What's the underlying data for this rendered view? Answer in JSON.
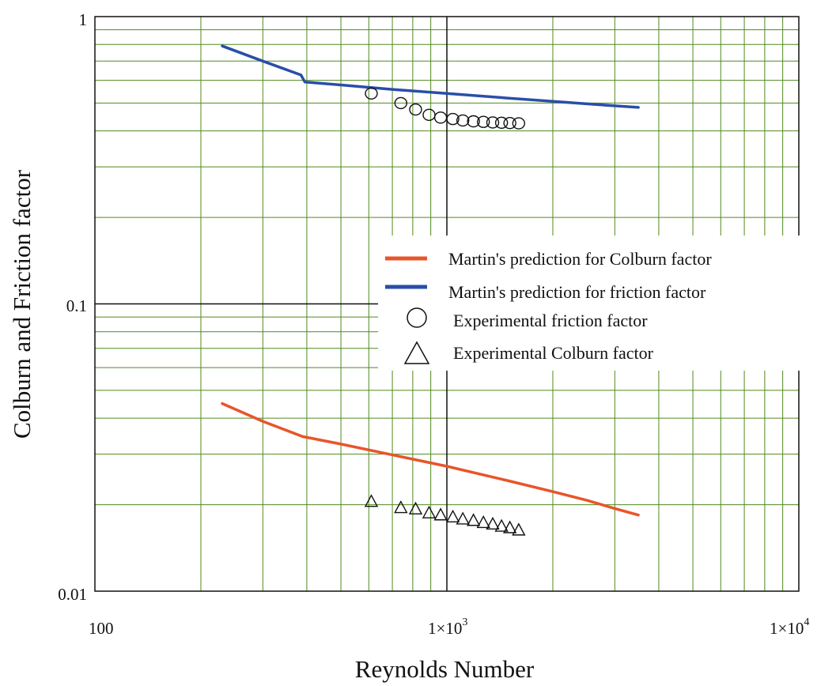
{
  "chart_data": {
    "type": "line",
    "xscale": "log",
    "yscale": "log",
    "xlim": [
      100,
      10000
    ],
    "ylim": [
      0.01,
      1
    ],
    "grid": true,
    "grid_color": "#4f8a1e",
    "legend_position": "center-right",
    "xlabel": "Reynolds Number",
    "ylabel": "Colburn and Friction factor",
    "x_tick_labels": [
      {
        "value": 100,
        "base": "100",
        "exp": ""
      },
      {
        "value": 1000,
        "base": "1×10",
        "exp": "3"
      },
      {
        "value": 10000,
        "base": "1×10",
        "exp": "4"
      }
    ],
    "y_tick_labels": [
      {
        "value": 1,
        "label": "1"
      },
      {
        "value": 0.1,
        "label": "0.1"
      },
      {
        "value": 0.01,
        "label": "0.01"
      }
    ],
    "series": [
      {
        "name": "Martin's prediction for Colburn factor",
        "kind": "line",
        "color": "#e8552a",
        "x": [
          230,
          300,
          390,
          400,
          500,
          700,
          1000,
          1500,
          2000,
          2500,
          3000,
          3500
        ],
        "y": [
          0.045,
          0.039,
          0.0345,
          0.0343,
          0.0325,
          0.0298,
          0.0272,
          0.0242,
          0.0222,
          0.0207,
          0.0194,
          0.0184
        ]
      },
      {
        "name": "Martin's prediction for friction factor",
        "kind": "line",
        "color": "#2a4ea8",
        "x": [
          230,
          300,
          385,
          395,
          500,
          700,
          1000,
          1500,
          2000,
          2500,
          3000,
          3500
        ],
        "y": [
          0.79,
          0.7,
          0.626,
          0.592,
          0.578,
          0.558,
          0.54,
          0.52,
          0.507,
          0.497,
          0.489,
          0.483
        ]
      },
      {
        "name": "Experimental friction factor",
        "kind": "circle",
        "color": "#111111",
        "x": [
          610,
          740,
          815,
          890,
          960,
          1040,
          1110,
          1190,
          1270,
          1350,
          1430,
          1510,
          1600
        ],
        "y": [
          0.54,
          0.5,
          0.475,
          0.455,
          0.445,
          0.44,
          0.435,
          0.432,
          0.43,
          0.428,
          0.427,
          0.426,
          0.425
        ]
      },
      {
        "name": "Experimental Colburn factor",
        "kind": "triangle",
        "color": "#111111",
        "x": [
          610,
          740,
          815,
          890,
          960,
          1040,
          1110,
          1190,
          1270,
          1350,
          1430,
          1510,
          1600
        ],
        "y": [
          0.0205,
          0.0195,
          0.0193,
          0.0187,
          0.0184,
          0.0181,
          0.0178,
          0.0176,
          0.0173,
          0.0171,
          0.0168,
          0.0166,
          0.0163
        ]
      }
    ]
  }
}
